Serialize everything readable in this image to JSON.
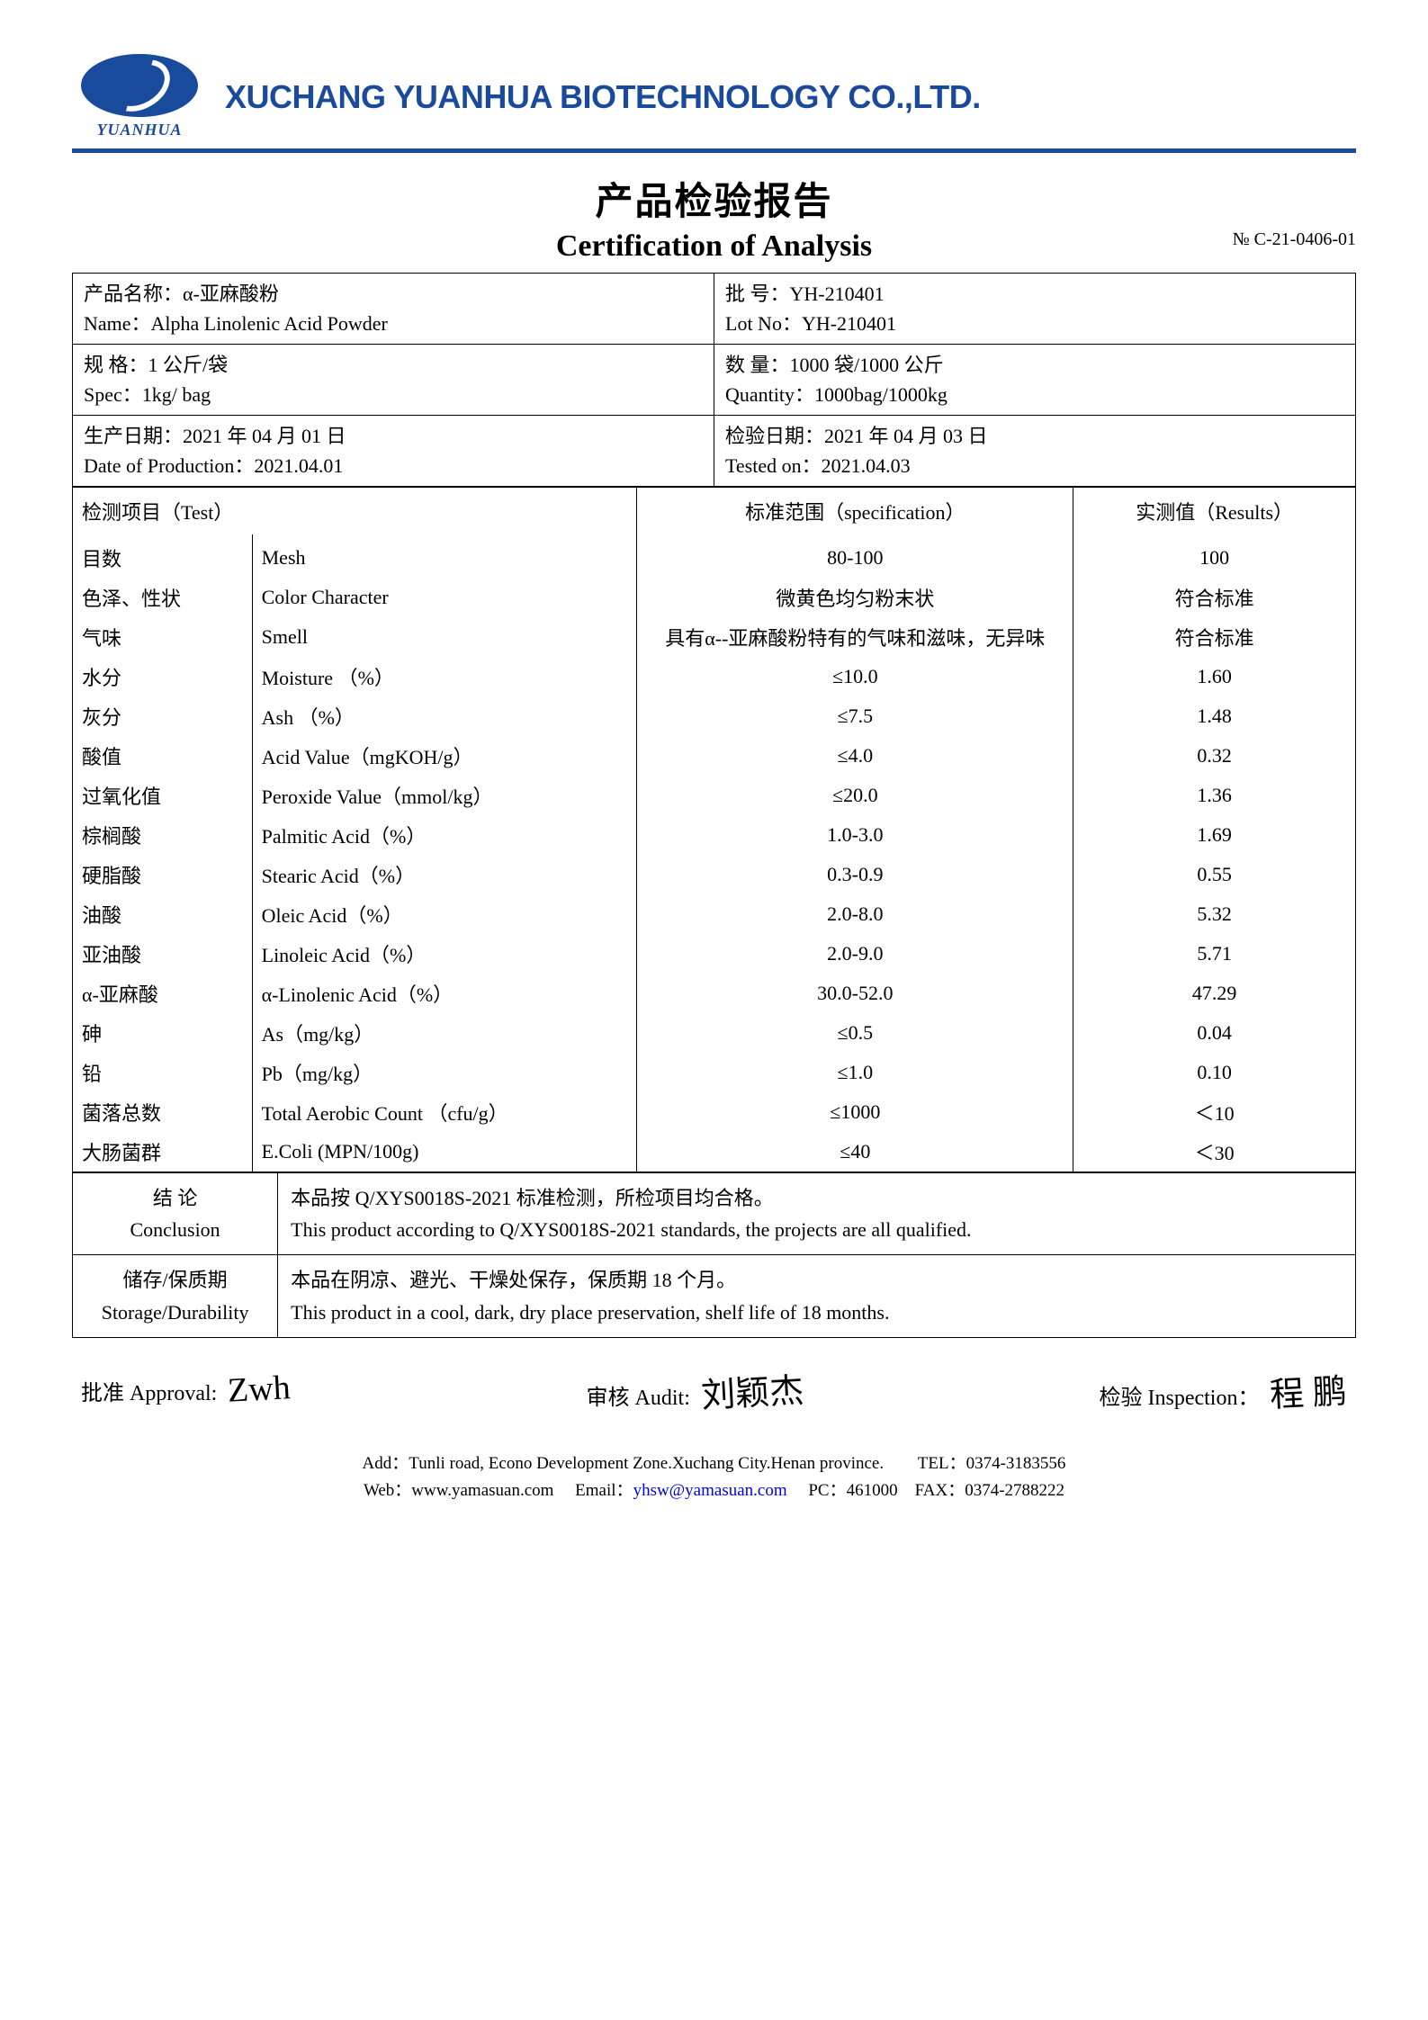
{
  "header": {
    "logo_text": "YUANHUA",
    "company": "XUCHANG YUANHUA BIOTECHNOLOGY CO.,LTD."
  },
  "title": {
    "cn": "产品检验报告",
    "en": "Certification of Analysis",
    "cert_no_label": "№",
    "cert_no": "C-21-0406-01"
  },
  "info": {
    "name_cn_label": "产品名称：",
    "name_cn": "α-亚麻酸粉",
    "name_en_label": "Name：",
    "name_en": "Alpha Linolenic Acid Powder",
    "lot_cn_label": "批  号：",
    "lot_cn": "YH-210401",
    "lot_en_label": "Lot No：",
    "lot_en": "YH-210401",
    "spec_cn_label": "规      格：",
    "spec_cn": "1 公斤/袋",
    "spec_en_label": "Spec：",
    "spec_en": "1kg/ bag",
    "qty_cn_label": "数      量：",
    "qty_cn": "1000 袋/1000 公斤",
    "qty_en_label": "Quantity：",
    "qty_en": "1000bag/1000kg",
    "prod_cn_label": "生产日期：",
    "prod_cn": "2021 年 04 月 01 日",
    "prod_en_label": "Date of Production：",
    "prod_en": "2021.04.01",
    "test_cn_label": "检验日期：",
    "test_cn": "2021 年 04 月 03 日",
    "test_en_label": "Tested on：",
    "test_en": "2021.04.03"
  },
  "tests": {
    "header": {
      "c1": "检测项目（Test）",
      "c3": "标准范围（specification）",
      "c4": "实测值（Results）"
    },
    "rows": [
      {
        "cn": "目数",
        "en": "Mesh",
        "spec": "80-100",
        "res": "100"
      },
      {
        "cn": "色泽、性状",
        "en": "Color Character",
        "spec": "微黄色均匀粉末状",
        "res": "符合标准"
      },
      {
        "cn": "气味",
        "en": "Smell",
        "spec": "具有α--亚麻酸粉特有的气味和滋味，无异味",
        "res": "符合标准"
      },
      {
        "cn": "水分",
        "en": "Moisture  （%）",
        "spec": "≤10.0",
        "res": "1.60"
      },
      {
        "cn": "灰分",
        "en": "Ash   （%）",
        "spec": "≤7.5",
        "res": "1.48"
      },
      {
        "cn": "酸值",
        "en": "Acid Value（mgKOH/g）",
        "spec": "≤4.0",
        "res": "0.32"
      },
      {
        "cn": "过氧化值",
        "en": "Peroxide Value（mmol/kg）",
        "spec": "≤20.0",
        "res": "1.36"
      },
      {
        "cn": "棕榈酸",
        "en": "Palmitic Acid（%）",
        "spec": "1.0-3.0",
        "res": "1.69"
      },
      {
        "cn": "硬脂酸",
        "en": "Stearic Acid（%）",
        "spec": "0.3-0.9",
        "res": "0.55"
      },
      {
        "cn": "油酸",
        "en": "Oleic Acid（%）",
        "spec": "2.0-8.0",
        "res": "5.32"
      },
      {
        "cn": "亚油酸",
        "en": "Linoleic Acid（%）",
        "spec": "2.0-9.0",
        "res": "5.71"
      },
      {
        "cn": "α-亚麻酸",
        "en": "α-Linolenic Acid（%）",
        "spec": "30.0-52.0",
        "res": "47.29"
      },
      {
        "cn": "砷",
        "en": "As（mg/kg）",
        "spec": "≤0.5",
        "res": "0.04"
      },
      {
        "cn": "铅",
        "en": "Pb（mg/kg）",
        "spec": "≤1.0",
        "res": "0.10"
      },
      {
        "cn": "菌落总数",
        "en": "Total Aerobic Count  （cfu/g）",
        "spec": "≤1000",
        "res": "＜10"
      },
      {
        "cn": "大肠菌群",
        "en": "E.Coli (MPN/100g)",
        "spec": "≤40",
        "res": "＜30"
      }
    ]
  },
  "conclusion": {
    "label_cn": "结      论",
    "label_en": "Conclusion",
    "body_cn": "本品按 Q/XYS0018S-2021 标准检测，所检项目均合格。",
    "body_en": "This product according to Q/XYS0018S-2021 standards, the projects are all qualified."
  },
  "storage": {
    "label_cn": "储存/保质期",
    "label_en": "Storage/Durability",
    "body_cn": "本品在阴凉、避光、干燥处保存，保质期 18 个月。",
    "body_en": "This product in a cool, dark, dry place preservation, shelf life of 18 months."
  },
  "signatures": {
    "approval_label": "批准 Approval:",
    "approval_sig": "Zwh",
    "audit_label": "审核 Audit:",
    "audit_sig": "刘颖杰",
    "inspection_label": "检验 Inspection：",
    "inspection_sig": "程 鹏"
  },
  "contact": {
    "line1_a": "Add：Tunli road, Econo Development Zone.Xuchang City.Henan province.",
    "line1_b": "TEL：0374-3183556",
    "line2_web_label": "Web：",
    "line2_web": "www.yamasuan.com",
    "line2_email_label": "Email：",
    "line2_email": "yhsw@yamasuan.com",
    "line2_pc": "PC：461000",
    "line2_fax": "FAX：0374-2788222"
  },
  "colors": {
    "brand": "#1a4a9c",
    "link": "#0000ee",
    "text": "#000000",
    "bg": "#ffffff"
  }
}
